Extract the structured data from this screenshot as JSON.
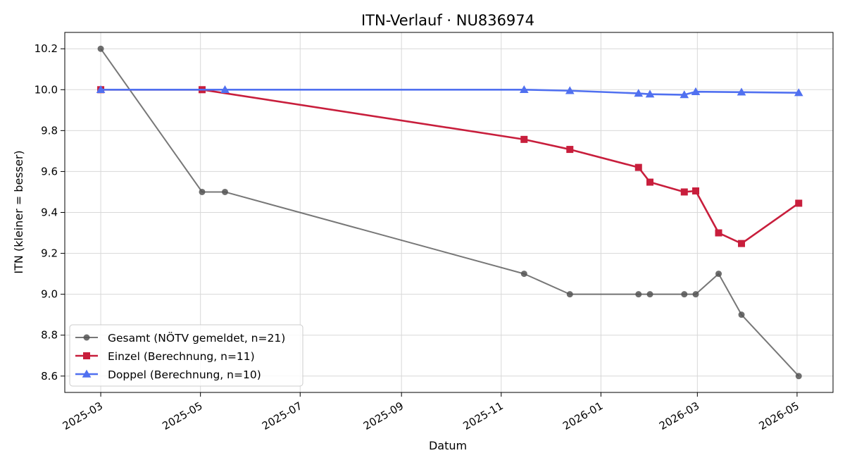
{
  "chart_data": {
    "type": "line",
    "title": "ITN-Verlauf · NU836974",
    "xlabel": "Datum",
    "ylabel": "ITN  (kleiner = besser)",
    "x_ticks": [
      "2025-03",
      "2025-05",
      "2025-07",
      "2025-09",
      "2025-11",
      "2026-01",
      "2026-03",
      "2026-05"
    ],
    "y_ticks": [
      "8.6",
      "8.8",
      "9.0",
      "9.2",
      "9.4",
      "9.6",
      "9.8",
      "10.0",
      "10.2"
    ],
    "xlim": [
      "2025-02-07",
      "2026-05-23"
    ],
    "ylim": [
      8.52,
      10.28
    ],
    "grid": true,
    "legend_position": "lower-left",
    "series": [
      {
        "name": "Gesamt (NÖTV gemeldet, n=21)",
        "color": "#555555",
        "marker": "circle",
        "points": [
          [
            "2025-03-01",
            10.2
          ],
          [
            "2025-05-02",
            9.5
          ],
          [
            "2025-05-16",
            9.5
          ],
          [
            "2025-11-15",
            9.1
          ],
          [
            "2025-12-13",
            9.0
          ],
          [
            "2026-01-24",
            9.0
          ],
          [
            "2026-01-31",
            9.0
          ],
          [
            "2026-02-21",
            9.0
          ],
          [
            "2026-02-28",
            9.0
          ],
          [
            "2026-03-14",
            9.1
          ],
          [
            "2026-03-28",
            8.9
          ],
          [
            "2026-05-02",
            8.6
          ]
        ]
      },
      {
        "name": "Einzel (Berechnung, n=11)",
        "color": "#c81e3c",
        "marker": "square",
        "points": [
          [
            "2025-03-01",
            10.0
          ],
          [
            "2025-05-02",
            10.0
          ],
          [
            "2025-11-15",
            9.757
          ],
          [
            "2025-12-13",
            9.708
          ],
          [
            "2026-01-24",
            9.62
          ],
          [
            "2026-01-31",
            9.548
          ],
          [
            "2026-02-21",
            9.5
          ],
          [
            "2026-02-28",
            9.505
          ],
          [
            "2026-03-14",
            9.3
          ],
          [
            "2026-03-28",
            9.248
          ],
          [
            "2026-05-02",
            9.445
          ]
        ]
      },
      {
        "name": "Doppel (Berechnung, n=10)",
        "color": "#5070f0",
        "marker": "triangle",
        "points": [
          [
            "2025-03-01",
            10.0
          ],
          [
            "2025-05-16",
            10.0
          ],
          [
            "2025-11-15",
            10.0
          ],
          [
            "2025-12-13",
            9.995
          ],
          [
            "2026-01-24",
            9.982
          ],
          [
            "2026-01-31",
            9.978
          ],
          [
            "2026-02-21",
            9.975
          ],
          [
            "2026-02-28",
            9.99
          ],
          [
            "2026-03-28",
            9.988
          ],
          [
            "2026-05-02",
            9.985
          ]
        ]
      }
    ]
  }
}
